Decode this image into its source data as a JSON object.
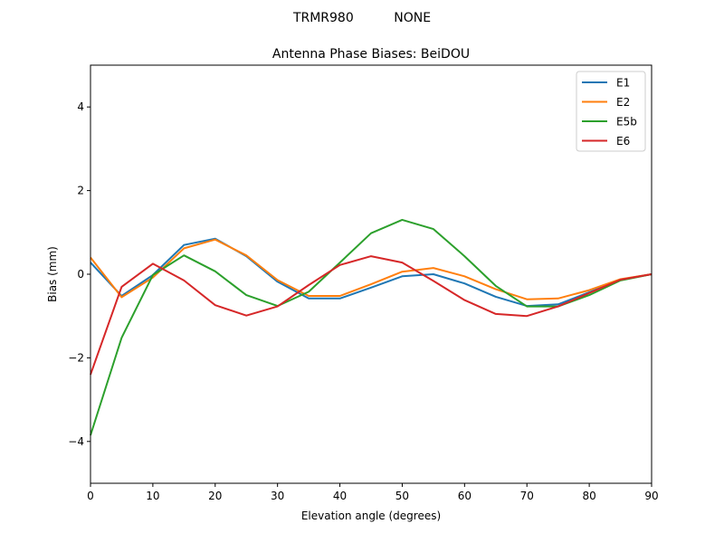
{
  "suptitle": "TRMR980          NONE",
  "chart_data": {
    "type": "line",
    "title": "Antenna Phase Biases: BeiDOU",
    "xlabel": "Elevation angle (degrees)",
    "ylabel": "Bias (mm)",
    "xlim": [
      0,
      90
    ],
    "ylim": [
      -5,
      5
    ],
    "xticks": [
      0,
      10,
      20,
      30,
      40,
      50,
      60,
      70,
      80,
      90
    ],
    "yticks": [
      -4,
      -2,
      0,
      2,
      4
    ],
    "grid": false,
    "legend_position": "top-right",
    "x": [
      0,
      5,
      10,
      15,
      20,
      25,
      30,
      35,
      40,
      45,
      50,
      55,
      60,
      65,
      70,
      75,
      80,
      85,
      90
    ],
    "series": [
      {
        "name": "E1",
        "color": "#1f77b4",
        "values": [
          0.28,
          -0.52,
          -0.02,
          0.7,
          0.85,
          0.43,
          -0.18,
          -0.58,
          -0.58,
          -0.32,
          -0.05,
          0.0,
          -0.22,
          -0.54,
          -0.76,
          -0.72,
          -0.43,
          -0.13,
          0.0
        ]
      },
      {
        "name": "E2",
        "color": "#ff7f0e",
        "values": [
          0.4,
          -0.55,
          -0.08,
          0.62,
          0.83,
          0.45,
          -0.14,
          -0.52,
          -0.52,
          -0.24,
          0.06,
          0.15,
          -0.05,
          -0.36,
          -0.6,
          -0.58,
          -0.38,
          -0.12,
          0.0
        ]
      },
      {
        "name": "E5b",
        "color": "#2ca02c",
        "values": [
          -3.85,
          -1.52,
          -0.02,
          0.45,
          0.07,
          -0.5,
          -0.76,
          -0.42,
          0.28,
          0.98,
          1.3,
          1.08,
          0.43,
          -0.28,
          -0.77,
          -0.77,
          -0.5,
          -0.15,
          0.0
        ]
      },
      {
        "name": "E6",
        "color": "#d62728",
        "values": [
          -2.4,
          -0.3,
          0.25,
          -0.15,
          -0.74,
          -0.99,
          -0.77,
          -0.26,
          0.22,
          0.43,
          0.28,
          -0.16,
          -0.62,
          -0.95,
          -1.0,
          -0.77,
          -0.45,
          -0.13,
          0.0
        ]
      }
    ]
  }
}
